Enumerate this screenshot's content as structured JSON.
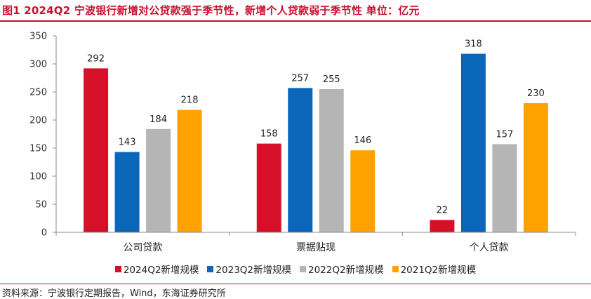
{
  "header": {
    "title": "图1  2024Q2 宁波银行新增对公贷款强于季节性，新增个人贷款弱于季节性  单位：亿元"
  },
  "footer": {
    "source": "资料来源：宁波银行定期报告，Wind，东海证券研究所"
  },
  "chart_data": {
    "type": "bar",
    "title": "2024Q2 宁波银行新增对公贷款强于季节性，新增个人贷款弱于季节性",
    "unit": "亿元",
    "categories": [
      "公司贷款",
      "票据贴现",
      "个人贷款"
    ],
    "series": [
      {
        "name": "2024Q2新增规模",
        "color": "#d7102a",
        "values": [
          292,
          158,
          22
        ]
      },
      {
        "name": "2023Q2新增规模",
        "color": "#0a66b9",
        "values": [
          143,
          257,
          318
        ]
      },
      {
        "name": "2022Q2新增规模",
        "color": "#b5b5b5",
        "values": [
          184,
          255,
          157
        ]
      },
      {
        "name": "2021Q2新增规模",
        "color": "#ffa200",
        "values": [
          218,
          146,
          230
        ]
      }
    ],
    "ylim": [
      0,
      350
    ],
    "yticks": [
      0,
      50,
      100,
      150,
      200,
      250,
      300,
      350
    ],
    "xlabel": "",
    "ylabel": "",
    "grid": false,
    "legend_position": "bottom"
  }
}
